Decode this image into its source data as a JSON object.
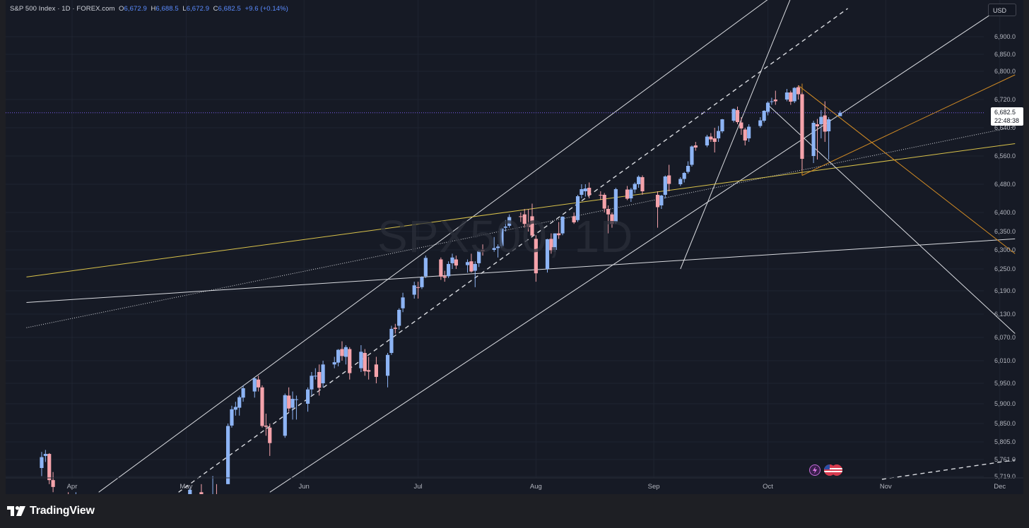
{
  "header": {
    "symbol": "S&P 500 Index · 1D · FOREX.com",
    "open_label": "O",
    "open": "6,672.9",
    "high_label": "H",
    "high": "6,688.5",
    "low_label": "L",
    "low": "6,672.9",
    "close_label": "C",
    "close": "6,682.5",
    "change": "+9.6 (+0.14%)"
  },
  "currency_button": "USD",
  "watermark": "SPX500, 1D",
  "last_price_label": {
    "price": "6,682.5",
    "countdown": "22:48:38"
  },
  "brand": {
    "name": "TradingView"
  },
  "colors": {
    "up": "#8db4f5",
    "down": "#f5a3ab",
    "background": "#161a25",
    "trendline": "#d9dbe0",
    "yellow_line": "#d9c24a",
    "orange_line": "#d08a24",
    "price_line": "#7b5cf0"
  },
  "chart_data": {
    "type": "candlestick",
    "title": "S&P 500 Index · 1D · FOREX.com",
    "y_ticks": [
      "6,900.0",
      "6,850.0",
      "6,800.0",
      "6,720.0",
      "6,640.0",
      "6,560.0",
      "6,480.0",
      "6,400.0",
      "6,350.0",
      "6,300.0",
      "6,250.0",
      "6,190.0",
      "6,130.0",
      "6,070.0",
      "6,010.0",
      "5,950.0",
      "5,900.0",
      "5,850.0",
      "5,805.0",
      "5,761.0",
      "5,719.0"
    ],
    "x_ticks": [
      "Apr",
      "May",
      "Jun",
      "Jul",
      "Aug",
      "Sep",
      "Oct",
      "Nov",
      "Dec"
    ],
    "last_price": 6682.5,
    "candles": [
      {
        "date": "2025-03-24",
        "o": 5740,
        "h": 5780,
        "l": 5720,
        "c": 5767
      },
      {
        "date": "2025-03-25",
        "o": 5770,
        "h": 5785,
        "l": 5755,
        "c": 5775
      },
      {
        "date": "2025-03-26",
        "o": 5775,
        "h": 5777,
        "l": 5700,
        "c": 5710
      },
      {
        "date": "2025-03-27",
        "o": 5710,
        "h": 5730,
        "l": 5680,
        "c": 5693
      },
      {
        "date": "2025-03-31",
        "o": 5620,
        "h": 5680,
        "l": 5600,
        "c": 5611
      },
      {
        "date": "2025-04-01",
        "o": 5620,
        "h": 5640,
        "l": 5590,
        "c": 5633
      },
      {
        "date": "2025-04-02",
        "o": 5630,
        "h": 5680,
        "l": 5610,
        "c": 5670
      },
      {
        "date": "2025-05-01",
        "o": 5610,
        "h": 5670,
        "l": 5600,
        "c": 5604
      },
      {
        "date": "2025-05-02",
        "o": 5610,
        "h": 5690,
        "l": 5600,
        "c": 5686
      },
      {
        "date": "2025-05-05",
        "o": 5680,
        "h": 5700,
        "l": 5640,
        "c": 5650
      },
      {
        "date": "2025-05-06",
        "o": 5650,
        "h": 5660,
        "l": 5600,
        "c": 5606
      },
      {
        "date": "2025-05-07",
        "o": 5610,
        "h": 5650,
        "l": 5590,
        "c": 5631
      },
      {
        "date": "2025-05-08",
        "o": 5640,
        "h": 5720,
        "l": 5630,
        "c": 5663
      },
      {
        "date": "2025-05-09",
        "o": 5665,
        "h": 5700,
        "l": 5650,
        "c": 5659
      },
      {
        "date": "2025-05-12",
        "o": 5700,
        "h": 5850,
        "l": 5700,
        "c": 5844
      },
      {
        "date": "2025-05-13",
        "o": 5845,
        "h": 5895,
        "l": 5840,
        "c": 5886
      },
      {
        "date": "2025-05-14",
        "o": 5885,
        "h": 5905,
        "l": 5870,
        "c": 5892
      },
      {
        "date": "2025-05-15",
        "o": 5890,
        "h": 5920,
        "l": 5870,
        "c": 5916
      },
      {
        "date": "2025-05-16",
        "o": 5915,
        "h": 5945,
        "l": 5905,
        "c": 5938
      },
      {
        "date": "2025-05-19",
        "o": 5930,
        "h": 5965,
        "l": 5915,
        "c": 5963
      },
      {
        "date": "2025-05-20",
        "o": 5960,
        "h": 5970,
        "l": 5930,
        "c": 5940
      },
      {
        "date": "2025-05-21",
        "o": 5940,
        "h": 5945,
        "l": 5840,
        "c": 5844
      },
      {
        "date": "2025-05-22",
        "o": 5845,
        "h": 5875,
        "l": 5820,
        "c": 5842
      },
      {
        "date": "2025-05-23",
        "o": 5840,
        "h": 5850,
        "l": 5770,
        "c": 5802
      },
      {
        "date": "2025-05-27",
        "o": 5820,
        "h": 5925,
        "l": 5815,
        "c": 5921
      },
      {
        "date": "2025-05-28",
        "o": 5920,
        "h": 5940,
        "l": 5880,
        "c": 5888
      },
      {
        "date": "2025-05-29",
        "o": 5890,
        "h": 5930,
        "l": 5860,
        "c": 5912
      },
      {
        "date": "2025-05-30",
        "o": 5910,
        "h": 5920,
        "l": 5860,
        "c": 5911
      },
      {
        "date": "2025-06-02",
        "o": 5900,
        "h": 5940,
        "l": 5880,
        "c": 5935
      },
      {
        "date": "2025-06-03",
        "o": 5935,
        "h": 5980,
        "l": 5920,
        "c": 5970
      },
      {
        "date": "2025-06-04",
        "o": 5970,
        "h": 5990,
        "l": 5960,
        "c": 5970
      },
      {
        "date": "2025-06-05",
        "o": 5980,
        "h": 6000,
        "l": 5920,
        "c": 5939
      },
      {
        "date": "2025-06-06",
        "o": 5950,
        "h": 6010,
        "l": 5940,
        "c": 6000
      },
      {
        "date": "2025-06-09",
        "o": 6000,
        "h": 6020,
        "l": 5990,
        "c": 6006
      },
      {
        "date": "2025-06-10",
        "o": 6005,
        "h": 6040,
        "l": 5995,
        "c": 6038
      },
      {
        "date": "2025-06-11",
        "o": 6040,
        "h": 6060,
        "l": 6010,
        "c": 6022
      },
      {
        "date": "2025-06-12",
        "o": 6020,
        "h": 6050,
        "l": 6000,
        "c": 6045
      },
      {
        "date": "2025-06-13",
        "o": 6040,
        "h": 6045,
        "l": 5960,
        "c": 5977
      },
      {
        "date": "2025-06-16",
        "o": 5990,
        "h": 6050,
        "l": 5980,
        "c": 6033
      },
      {
        "date": "2025-06-17",
        "o": 6030,
        "h": 6040,
        "l": 5970,
        "c": 5982
      },
      {
        "date": "2025-06-18",
        "o": 5985,
        "h": 6020,
        "l": 5960,
        "c": 5981
      },
      {
        "date": "2025-06-20",
        "o": 6000,
        "h": 6020,
        "l": 5950,
        "c": 5967
      },
      {
        "date": "2025-06-23",
        "o": 5970,
        "h": 6030,
        "l": 5940,
        "c": 6025
      },
      {
        "date": "2025-06-24",
        "o": 6030,
        "h": 6100,
        "l": 6025,
        "c": 6092
      },
      {
        "date": "2025-06-25",
        "o": 6095,
        "h": 6105,
        "l": 6080,
        "c": 6092
      },
      {
        "date": "2025-06-26",
        "o": 6100,
        "h": 6145,
        "l": 6090,
        "c": 6141
      },
      {
        "date": "2025-06-27",
        "o": 6145,
        "h": 6185,
        "l": 6135,
        "c": 6173
      },
      {
        "date": "2025-06-30",
        "o": 6180,
        "h": 6215,
        "l": 6170,
        "c": 6205
      },
      {
        "date": "2025-07-01",
        "o": 6200,
        "h": 6215,
        "l": 6170,
        "c": 6198
      },
      {
        "date": "2025-07-02",
        "o": 6200,
        "h": 6230,
        "l": 6195,
        "c": 6227
      },
      {
        "date": "2025-07-03",
        "o": 6230,
        "h": 6285,
        "l": 6225,
        "c": 6279
      },
      {
        "date": "2025-07-07",
        "o": 6275,
        "h": 6280,
        "l": 6220,
        "c": 6229
      },
      {
        "date": "2025-07-08",
        "o": 6230,
        "h": 6245,
        "l": 6215,
        "c": 6226
      },
      {
        "date": "2025-07-09",
        "o": 6230,
        "h": 6270,
        "l": 6225,
        "c": 6263
      },
      {
        "date": "2025-07-10",
        "o": 6265,
        "h": 6290,
        "l": 6250,
        "c": 6280
      },
      {
        "date": "2025-07-11",
        "o": 6275,
        "h": 6285,
        "l": 6250,
        "c": 6259
      },
      {
        "date": "2025-07-14",
        "o": 6260,
        "h": 6275,
        "l": 6240,
        "c": 6268
      },
      {
        "date": "2025-07-15",
        "o": 6270,
        "h": 6290,
        "l": 6240,
        "c": 6243
      },
      {
        "date": "2025-07-16",
        "o": 6245,
        "h": 6270,
        "l": 6200,
        "c": 6263
      },
      {
        "date": "2025-07-17",
        "o": 6265,
        "h": 6300,
        "l": 6255,
        "c": 6297
      },
      {
        "date": "2025-07-18",
        "o": 6300,
        "h": 6315,
        "l": 6285,
        "c": 6296
      },
      {
        "date": "2025-07-21",
        "o": 6300,
        "h": 6335,
        "l": 6295,
        "c": 6305
      },
      {
        "date": "2025-07-22",
        "o": 6305,
        "h": 6315,
        "l": 6280,
        "c": 6309
      },
      {
        "date": "2025-07-23",
        "o": 6310,
        "h": 6360,
        "l": 6305,
        "c": 6358
      },
      {
        "date": "2025-07-24",
        "o": 6360,
        "h": 6380,
        "l": 6350,
        "c": 6363
      },
      {
        "date": "2025-07-25",
        "o": 6365,
        "h": 6395,
        "l": 6360,
        "c": 6388
      },
      {
        "date": "2025-07-28",
        "o": 6390,
        "h": 6400,
        "l": 6375,
        "c": 6389
      },
      {
        "date": "2025-07-29",
        "o": 6395,
        "h": 6410,
        "l": 6360,
        "c": 6370
      },
      {
        "date": "2025-07-30",
        "o": 6370,
        "h": 6410,
        "l": 6350,
        "c": 6362
      },
      {
        "date": "2025-07-31",
        "o": 6390,
        "h": 6425,
        "l": 6335,
        "c": 6339
      },
      {
        "date": "2025-08-01",
        "o": 6330,
        "h": 6340,
        "l": 6215,
        "c": 6238
      },
      {
        "date": "2025-08-04",
        "o": 6250,
        "h": 6330,
        "l": 6240,
        "c": 6329
      },
      {
        "date": "2025-08-05",
        "o": 6330,
        "h": 6345,
        "l": 6290,
        "c": 6299
      },
      {
        "date": "2025-08-06",
        "o": 6300,
        "h": 6345,
        "l": 6295,
        "c": 6345
      },
      {
        "date": "2025-08-07",
        "o": 6345,
        "h": 6375,
        "l": 6330,
        "c": 6340
      },
      {
        "date": "2025-08-08",
        "o": 6345,
        "h": 6390,
        "l": 6340,
        "c": 6389
      },
      {
        "date": "2025-08-11",
        "o": 6390,
        "h": 6400,
        "l": 6370,
        "c": 6374
      },
      {
        "date": "2025-08-12",
        "o": 6380,
        "h": 6450,
        "l": 6375,
        "c": 6446
      },
      {
        "date": "2025-08-13",
        "o": 6450,
        "h": 6480,
        "l": 6440,
        "c": 6466
      },
      {
        "date": "2025-08-14",
        "o": 6460,
        "h": 6480,
        "l": 6445,
        "c": 6468
      },
      {
        "date": "2025-08-15",
        "o": 6470,
        "h": 6485,
        "l": 6440,
        "c": 6449
      },
      {
        "date": "2025-08-18",
        "o": 6450,
        "h": 6460,
        "l": 6435,
        "c": 6449
      },
      {
        "date": "2025-08-19",
        "o": 6450,
        "h": 6455,
        "l": 6400,
        "c": 6411
      },
      {
        "date": "2025-08-20",
        "o": 6410,
        "h": 6420,
        "l": 6345,
        "c": 6395
      },
      {
        "date": "2025-08-21",
        "o": 6395,
        "h": 6400,
        "l": 6360,
        "c": 6370
      },
      {
        "date": "2025-08-22",
        "o": 6375,
        "h": 6470,
        "l": 6370,
        "c": 6466
      },
      {
        "date": "2025-08-25",
        "o": 6465,
        "h": 6475,
        "l": 6435,
        "c": 6439
      },
      {
        "date": "2025-08-26",
        "o": 6440,
        "h": 6470,
        "l": 6430,
        "c": 6465
      },
      {
        "date": "2025-08-27",
        "o": 6465,
        "h": 6485,
        "l": 6455,
        "c": 6481
      },
      {
        "date": "2025-08-28",
        "o": 6480,
        "h": 6505,
        "l": 6470,
        "c": 6501
      },
      {
        "date": "2025-08-29",
        "o": 6500,
        "h": 6505,
        "l": 6450,
        "c": 6460
      },
      {
        "date": "2025-09-02",
        "o": 6450,
        "h": 6460,
        "l": 6360,
        "c": 6415
      },
      {
        "date": "2025-09-03",
        "o": 6420,
        "h": 6450,
        "l": 6410,
        "c": 6448
      },
      {
        "date": "2025-09-04",
        "o": 6450,
        "h": 6505,
        "l": 6440,
        "c": 6502
      },
      {
        "date": "2025-09-05",
        "o": 6505,
        "h": 6535,
        "l": 6460,
        "c": 6481
      },
      {
        "date": "2025-09-08",
        "o": 6480,
        "h": 6500,
        "l": 6475,
        "c": 6495
      },
      {
        "date": "2025-09-09",
        "o": 6495,
        "h": 6515,
        "l": 6485,
        "c": 6512
      },
      {
        "date": "2025-09-10",
        "o": 6515,
        "h": 6545,
        "l": 6510,
        "c": 6532
      },
      {
        "date": "2025-09-11",
        "o": 6535,
        "h": 6590,
        "l": 6530,
        "c": 6587
      },
      {
        "date": "2025-09-12",
        "o": 6590,
        "h": 6600,
        "l": 6575,
        "c": 6584
      },
      {
        "date": "2025-09-15",
        "o": 6590,
        "h": 6620,
        "l": 6585,
        "c": 6615
      },
      {
        "date": "2025-09-16",
        "o": 6615,
        "h": 6625,
        "l": 6600,
        "c": 6607
      },
      {
        "date": "2025-09-17",
        "o": 6610,
        "h": 6640,
        "l": 6570,
        "c": 6600
      },
      {
        "date": "2025-09-18",
        "o": 6610,
        "h": 6645,
        "l": 6600,
        "c": 6631
      },
      {
        "date": "2025-09-19",
        "o": 6630,
        "h": 6665,
        "l": 6625,
        "c": 6664
      },
      {
        "date": "2025-09-22",
        "o": 6660,
        "h": 6695,
        "l": 6655,
        "c": 6693
      },
      {
        "date": "2025-09-23",
        "o": 6690,
        "h": 6700,
        "l": 6650,
        "c": 6656
      },
      {
        "date": "2025-09-24",
        "o": 6655,
        "h": 6670,
        "l": 6620,
        "c": 6638
      },
      {
        "date": "2025-09-25",
        "o": 6635,
        "h": 6640,
        "l": 6590,
        "c": 6604
      },
      {
        "date": "2025-09-26",
        "o": 6610,
        "h": 6650,
        "l": 6600,
        "c": 6643
      },
      {
        "date": "2025-09-29",
        "o": 6645,
        "h": 6670,
        "l": 6640,
        "c": 6661
      },
      {
        "date": "2025-09-30",
        "o": 6660,
        "h": 6690,
        "l": 6655,
        "c": 6688
      },
      {
        "date": "2025-10-01",
        "o": 6685,
        "h": 6715,
        "l": 6675,
        "c": 6711
      },
      {
        "date": "2025-10-02",
        "o": 6715,
        "h": 6725,
        "l": 6705,
        "c": 6715
      },
      {
        "date": "2025-10-03",
        "o": 6720,
        "h": 6745,
        "l": 6705,
        "c": 6715
      },
      {
        "date": "2025-10-06",
        "o": 6720,
        "h": 6750,
        "l": 6715,
        "c": 6740
      },
      {
        "date": "2025-10-07",
        "o": 6740,
        "h": 6745,
        "l": 6705,
        "c": 6714
      },
      {
        "date": "2025-10-08",
        "o": 6715,
        "h": 6755,
        "l": 6710,
        "c": 6753
      },
      {
        "date": "2025-10-09",
        "o": 6755,
        "h": 6760,
        "l": 6720,
        "c": 6735
      },
      {
        "date": "2025-10-10",
        "o": 6735,
        "h": 6740,
        "l": 6520,
        "c": 6552
      },
      {
        "date": "2025-10-13",
        "o": 6560,
        "h": 6660,
        "l": 6540,
        "c": 6654
      },
      {
        "date": "2025-10-14",
        "o": 6650,
        "h": 6665,
        "l": 6550,
        "c": 6644
      },
      {
        "date": "2025-10-15",
        "o": 6650,
        "h": 6690,
        "l": 6610,
        "c": 6671
      },
      {
        "date": "2025-10-16",
        "o": 6675,
        "h": 6715,
        "l": 6600,
        "c": 6629
      },
      {
        "date": "2025-10-17",
        "o": 6630,
        "h": 6670,
        "l": 6550,
        "c": 6664
      },
      {
        "date": "2025-10-20",
        "o": 6672.9,
        "h": 6688.5,
        "l": 6672.9,
        "c": 6682.5
      }
    ]
  }
}
